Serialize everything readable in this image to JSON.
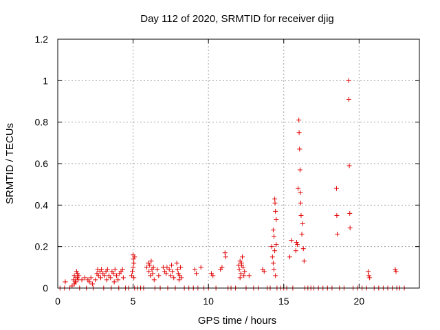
{
  "chart_data": {
    "type": "scatter",
    "title": "Day 112 of 2020, SRMTID for receiver djig",
    "xlabel": "GPS time / hours",
    "ylabel": "SRMTID / TECUs",
    "xlim": [
      0,
      24
    ],
    "ylim": [
      0,
      1.2
    ],
    "xticks": [
      0,
      5,
      10,
      15,
      20
    ],
    "xtick_labels": [
      "0",
      "5",
      "10",
      "15",
      "20"
    ],
    "yticks": [
      0,
      0.2,
      0.4,
      0.6,
      0.8,
      1.0,
      1.2
    ],
    "ytick_labels": [
      "0",
      "0.2",
      "0.4",
      "0.6",
      "0.8",
      "1",
      "1.2"
    ],
    "grid": true,
    "marker": "+",
    "color": "#e00000",
    "series": [
      {
        "name": "SRMTID",
        "points": [
          [
            0.15,
            0.0
          ],
          [
            0.45,
            0.0
          ],
          [
            0.5,
            0.03
          ],
          [
            0.8,
            0.0
          ],
          [
            0.95,
            0.01
          ],
          [
            1.05,
            0.04
          ],
          [
            1.1,
            0.06
          ],
          [
            1.15,
            0.03
          ],
          [
            1.2,
            0.05
          ],
          [
            1.25,
            0.08
          ],
          [
            1.3,
            0.07
          ],
          [
            1.35,
            0.04
          ],
          [
            1.4,
            0.06
          ],
          [
            1.1,
            0.02
          ],
          [
            1.2,
            0.03
          ],
          [
            1.3,
            0.05
          ],
          [
            1.45,
            0.0
          ],
          [
            1.6,
            0.04
          ],
          [
            1.8,
            0.05
          ],
          [
            1.9,
            0.0
          ],
          [
            2.0,
            0.04
          ],
          [
            2.1,
            0.03
          ],
          [
            2.2,
            0.05
          ],
          [
            2.3,
            0.02
          ],
          [
            2.35,
            0.0
          ],
          [
            2.5,
            0.04
          ],
          [
            2.6,
            0.07
          ],
          [
            2.65,
            0.09
          ],
          [
            2.7,
            0.06
          ],
          [
            2.8,
            0.08
          ],
          [
            2.85,
            0.05
          ],
          [
            2.9,
            0.09
          ],
          [
            3.0,
            0.07
          ],
          [
            3.05,
            0.0
          ],
          [
            3.1,
            0.06
          ],
          [
            3.2,
            0.08
          ],
          [
            3.25,
            0.04
          ],
          [
            3.3,
            0.09
          ],
          [
            3.4,
            0.06
          ],
          [
            3.5,
            0.05
          ],
          [
            3.55,
            0.0
          ],
          [
            3.6,
            0.08
          ],
          [
            3.7,
            0.07
          ],
          [
            3.75,
            0.03
          ],
          [
            3.8,
            0.09
          ],
          [
            3.9,
            0.06
          ],
          [
            4.0,
            0.04
          ],
          [
            4.05,
            0.0
          ],
          [
            4.1,
            0.07
          ],
          [
            4.2,
            0.08
          ],
          [
            4.3,
            0.09
          ],
          [
            4.35,
            0.05
          ],
          [
            4.5,
            0.0
          ],
          [
            4.7,
            0.0
          ],
          [
            4.9,
            0.06
          ],
          [
            4.95,
            0.08
          ],
          [
            5.0,
            0.16
          ],
          [
            5.02,
            0.14
          ],
          [
            5.05,
            0.12
          ],
          [
            5.1,
            0.15
          ],
          [
            5.0,
            0.1
          ],
          [
            5.05,
            0.05
          ],
          [
            5.1,
            0.0
          ],
          [
            5.3,
            0.0
          ],
          [
            5.5,
            0.0
          ],
          [
            5.7,
            0.0
          ],
          [
            5.9,
            0.1
          ],
          [
            6.0,
            0.12
          ],
          [
            6.05,
            0.08
          ],
          [
            6.1,
            0.11
          ],
          [
            6.15,
            0.06
          ],
          [
            6.2,
            0.13
          ],
          [
            6.25,
            0.09
          ],
          [
            6.3,
            0.07
          ],
          [
            6.35,
            0.1
          ],
          [
            6.4,
            0.04
          ],
          [
            6.45,
            0.0
          ],
          [
            6.6,
            0.09
          ],
          [
            6.7,
            0.06
          ],
          [
            6.8,
            0.0
          ],
          [
            7.0,
            0.1
          ],
          [
            7.1,
            0.08
          ],
          [
            7.2,
            0.07
          ],
          [
            7.25,
            0.1
          ],
          [
            7.3,
            0.0
          ],
          [
            7.4,
            0.09
          ],
          [
            7.5,
            0.06
          ],
          [
            7.55,
            0.11
          ],
          [
            7.6,
            0.08
          ],
          [
            7.7,
            0.05
          ],
          [
            7.8,
            0.0
          ],
          [
            7.9,
            0.12
          ],
          [
            7.95,
            0.09
          ],
          [
            8.0,
            0.07
          ],
          [
            8.05,
            0.04
          ],
          [
            8.1,
            0.06
          ],
          [
            8.15,
            0.1
          ],
          [
            8.2,
            0.05
          ],
          [
            8.4,
            0.0
          ],
          [
            8.7,
            0.0
          ],
          [
            9.0,
            0.0
          ],
          [
            9.1,
            0.09
          ],
          [
            9.2,
            0.07
          ],
          [
            9.3,
            0.0
          ],
          [
            9.5,
            0.1
          ],
          [
            9.7,
            0.0
          ],
          [
            10.0,
            0.0
          ],
          [
            10.2,
            0.07
          ],
          [
            10.3,
            0.06
          ],
          [
            10.5,
            0.0
          ],
          [
            10.8,
            0.09
          ],
          [
            10.9,
            0.1
          ],
          [
            11.1,
            0.17
          ],
          [
            11.15,
            0.15
          ],
          [
            11.3,
            0.0
          ],
          [
            11.5,
            0.0
          ],
          [
            11.8,
            0.0
          ],
          [
            12.0,
            0.11
          ],
          [
            12.05,
            0.09
          ],
          [
            12.1,
            0.13
          ],
          [
            12.15,
            0.07
          ],
          [
            12.2,
            0.12
          ],
          [
            12.25,
            0.15
          ],
          [
            12.3,
            0.1
          ],
          [
            12.35,
            0.06
          ],
          [
            12.4,
            0.08
          ],
          [
            12.1,
            0.05
          ],
          [
            12.2,
            0.11
          ],
          [
            12.5,
            0.0
          ],
          [
            12.7,
            0.06
          ],
          [
            13.0,
            0.0
          ],
          [
            13.3,
            0.0
          ],
          [
            13.6,
            0.09
          ],
          [
            13.7,
            0.08
          ],
          [
            13.9,
            0.0
          ],
          [
            14.1,
            0.0
          ],
          [
            14.2,
            0.2
          ],
          [
            14.25,
            0.15
          ],
          [
            14.3,
            0.28
          ],
          [
            14.35,
            0.25
          ],
          [
            14.4,
            0.43
          ],
          [
            14.42,
            0.41
          ],
          [
            14.45,
            0.37
          ],
          [
            14.5,
            0.33
          ],
          [
            14.3,
            0.12
          ],
          [
            14.35,
            0.09
          ],
          [
            14.4,
            0.18
          ],
          [
            14.45,
            0.06
          ],
          [
            14.5,
            0.21
          ],
          [
            14.55,
            0.0
          ],
          [
            14.8,
            0.0
          ],
          [
            15.0,
            0.0
          ],
          [
            15.2,
            0.0
          ],
          [
            15.4,
            0.15
          ],
          [
            15.5,
            0.23
          ],
          [
            15.6,
            0.0
          ],
          [
            15.8,
            0.18
          ],
          [
            15.85,
            0.22
          ],
          [
            15.9,
            0.21
          ],
          [
            15.95,
            0.48
          ],
          [
            16.0,
            0.81
          ],
          [
            16.02,
            0.75
          ],
          [
            16.05,
            0.67
          ],
          [
            16.08,
            0.57
          ],
          [
            16.1,
            0.46
          ],
          [
            16.12,
            0.41
          ],
          [
            16.15,
            0.35
          ],
          [
            16.2,
            0.26
          ],
          [
            16.25,
            0.31
          ],
          [
            16.3,
            0.19
          ],
          [
            16.35,
            0.13
          ],
          [
            16.4,
            0.0
          ],
          [
            16.6,
            0.0
          ],
          [
            16.8,
            0.0
          ],
          [
            17.0,
            0.0
          ],
          [
            17.3,
            0.0
          ],
          [
            17.6,
            0.0
          ],
          [
            17.9,
            0.0
          ],
          [
            18.2,
            0.0
          ],
          [
            18.5,
            0.48
          ],
          [
            18.52,
            0.35
          ],
          [
            18.55,
            0.26
          ],
          [
            18.7,
            0.0
          ],
          [
            19.0,
            0.0
          ],
          [
            19.3,
            1.0
          ],
          [
            19.32,
            0.91
          ],
          [
            19.35,
            0.59
          ],
          [
            19.38,
            0.36
          ],
          [
            19.4,
            0.29
          ],
          [
            19.6,
            0.0
          ],
          [
            19.9,
            0.0
          ],
          [
            20.2,
            0.0
          ],
          [
            20.5,
            0.0
          ],
          [
            20.6,
            0.08
          ],
          [
            20.65,
            0.06
          ],
          [
            20.7,
            0.05
          ],
          [
            21.0,
            0.0
          ],
          [
            21.3,
            0.0
          ],
          [
            21.6,
            0.0
          ],
          [
            21.9,
            0.0
          ],
          [
            22.2,
            0.0
          ],
          [
            22.4,
            0.09
          ],
          [
            22.45,
            0.08
          ],
          [
            22.5,
            0.0
          ],
          [
            22.7,
            0.0
          ],
          [
            23.0,
            0.0
          ]
        ]
      }
    ]
  }
}
